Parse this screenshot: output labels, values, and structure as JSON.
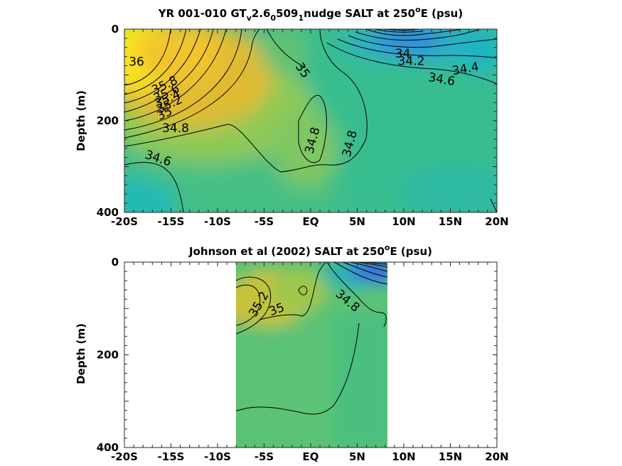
{
  "chart_data": [
    {
      "type": "heatmap",
      "title": "YR 001-010 GT",
      "title_sub_v": "v",
      "title_mid_1": "2.6",
      "title_sub_0": "0",
      "title_mid_2": "509",
      "title_sub_1": "1",
      "title_mid_3": "nudge SALT at 250",
      "title_sup": "o",
      "title_end": "E (psu)",
      "ylabel": "Depth (m)",
      "x_ticks": [
        "-20S",
        "-15S",
        "-10S",
        "-5S",
        "EQ",
        "5N",
        "10N",
        "15N",
        "20N"
      ],
      "x_tick_values": [
        -20,
        -15,
        -10,
        -5,
        0,
        5,
        10,
        15,
        20
      ],
      "y_ticks": [
        "0",
        "200",
        "400"
      ],
      "y_tick_values": [
        0,
        200,
        400
      ],
      "xlim": [
        -20,
        20
      ],
      "ylim": [
        400,
        0
      ],
      "data_extent": [
        -20,
        20
      ],
      "contour_labels": [
        {
          "text": "36",
          "x": -18.7,
          "y": 80,
          "rot": 0
        },
        {
          "text": "35.8",
          "x": -15.5,
          "y": 130,
          "rot": -25
        },
        {
          "text": "35.6",
          "x": -15.3,
          "y": 148,
          "rot": -25
        },
        {
          "text": "35.4",
          "x": -15.2,
          "y": 160,
          "rot": -25
        },
        {
          "text": "35.2",
          "x": -15.0,
          "y": 172,
          "rot": -25
        },
        {
          "text": "35",
          "x": -15.5,
          "y": 192,
          "rot": -25
        },
        {
          "text": "34.8",
          "x": -14.5,
          "y": 225,
          "rot": 0
        },
        {
          "text": "34.6",
          "x": -16.5,
          "y": 290,
          "rot": 18
        },
        {
          "text": "35",
          "x": -1.2,
          "y": 95,
          "rot": 55
        },
        {
          "text": "34.8",
          "x": 0.6,
          "y": 245,
          "rot": -75
        },
        {
          "text": "34.8",
          "x": 4.6,
          "y": 252,
          "rot": -75
        },
        {
          "text": "34",
          "x": 9.9,
          "y": 62,
          "rot": 0
        },
        {
          "text": "34.2",
          "x": 10.8,
          "y": 78,
          "rot": 0
        },
        {
          "text": "34.4",
          "x": 16.7,
          "y": 95,
          "rot": -10
        },
        {
          "text": "34.6",
          "x": 14.0,
          "y": 118,
          "rot": 10
        }
      ]
    },
    {
      "type": "heatmap",
      "title": "Johnson et al (2002) SALT at 250",
      "title_sup": "o",
      "title_end": "E (psu)",
      "ylabel": "Depth (m)",
      "x_ticks": [
        "-20S",
        "-15S",
        "-10S",
        "-5S",
        "EQ",
        "5N",
        "10N",
        "15N",
        "20N"
      ],
      "x_tick_values": [
        -20,
        -15,
        -10,
        -5,
        0,
        5,
        10,
        15,
        20
      ],
      "y_ticks": [
        "0",
        "200",
        "400"
      ],
      "y_tick_values": [
        0,
        200,
        400
      ],
      "xlim": [
        -20,
        20
      ],
      "ylim": [
        400,
        0
      ],
      "data_extent": [
        -8,
        8.3
      ],
      "contour_labels": [
        {
          "text": "35.2",
          "x": -5.2,
          "y": 95,
          "rot": -60
        },
        {
          "text": "35",
          "x": -3.5,
          "y": 110,
          "rot": -20
        },
        {
          "text": "34.8",
          "x": 3.7,
          "y": 90,
          "rot": 40
        }
      ]
    }
  ],
  "colors": {
    "background_field": "#3fbd8a",
    "salty": "#f9f21f",
    "fresh": "#2d6de8",
    "contour": "#000000"
  }
}
